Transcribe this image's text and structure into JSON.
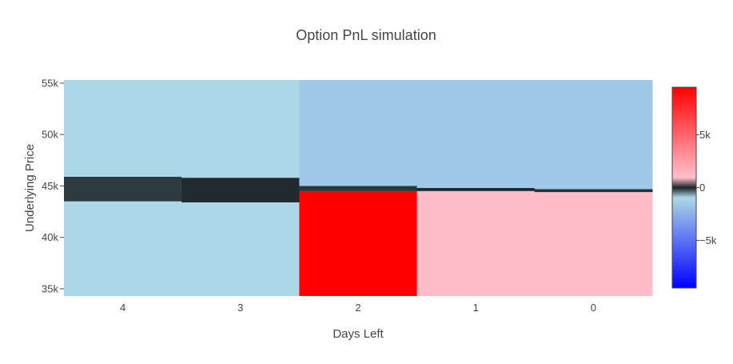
{
  "chart_data": {
    "type": "heatmap",
    "title": "Option PnL simulation",
    "xlabel": "Days Left",
    "ylabel": "Underlying Price",
    "x_categories": [
      "4",
      "3",
      "2",
      "1",
      "0"
    ],
    "y_ticks": [
      {
        "value": 35000,
        "label": "35k"
      },
      {
        "value": 40000,
        "label": "40k"
      },
      {
        "value": 45000,
        "label": "45k"
      },
      {
        "value": 50000,
        "label": "50k"
      },
      {
        "value": 55000,
        "label": "55k"
      }
    ],
    "ylim": [
      34300,
      55300
    ],
    "colorscale": [
      {
        "stop": 0.0,
        "color": "#0000ff"
      },
      {
        "stop": 0.45,
        "color": "#add8e6"
      },
      {
        "stop": 0.5,
        "color": "#1a2328"
      },
      {
        "stop": 0.55,
        "color": "#ffc0cb"
      },
      {
        "stop": 1.0,
        "color": "#ff0000"
      }
    ],
    "colorbar": {
      "range": [
        -9500,
        9500
      ],
      "ticks": [
        {
          "value": 5000,
          "label": "5k"
        },
        {
          "value": 0,
          "label": "0"
        },
        {
          "value": -5000,
          "label": "−5k"
        }
      ]
    },
    "columns": [
      {
        "day": "4",
        "bands": [
          {
            "from": 34300,
            "to": 43500,
            "pnl": -1000
          },
          {
            "from": 43500,
            "to": 45900,
            "pnl": -120
          },
          {
            "from": 45900,
            "to": 55300,
            "pnl": -1000
          }
        ]
      },
      {
        "day": "3",
        "bands": [
          {
            "from": 34300,
            "to": 43400,
            "pnl": -1000
          },
          {
            "from": 43400,
            "to": 45800,
            "pnl": -40
          },
          {
            "from": 45800,
            "to": 55300,
            "pnl": -1000
          }
        ]
      },
      {
        "day": "2",
        "bands": [
          {
            "from": 34300,
            "to": 44500,
            "pnl": 9500
          },
          {
            "from": 44500,
            "to": 45000,
            "pnl": -100
          },
          {
            "from": 45000,
            "to": 55300,
            "pnl": -1600
          }
        ]
      },
      {
        "day": "1",
        "bands": [
          {
            "from": 34300,
            "to": 44500,
            "pnl": 1100
          },
          {
            "from": 44500,
            "to": 44800,
            "pnl": -40
          },
          {
            "from": 44800,
            "to": 55300,
            "pnl": -1600
          }
        ]
      },
      {
        "day": "0",
        "bands": [
          {
            "from": 34300,
            "to": 44400,
            "pnl": 1100
          },
          {
            "from": 44400,
            "to": 44700,
            "pnl": -80
          },
          {
            "from": 44700,
            "to": 55300,
            "pnl": -1600
          }
        ]
      }
    ]
  }
}
